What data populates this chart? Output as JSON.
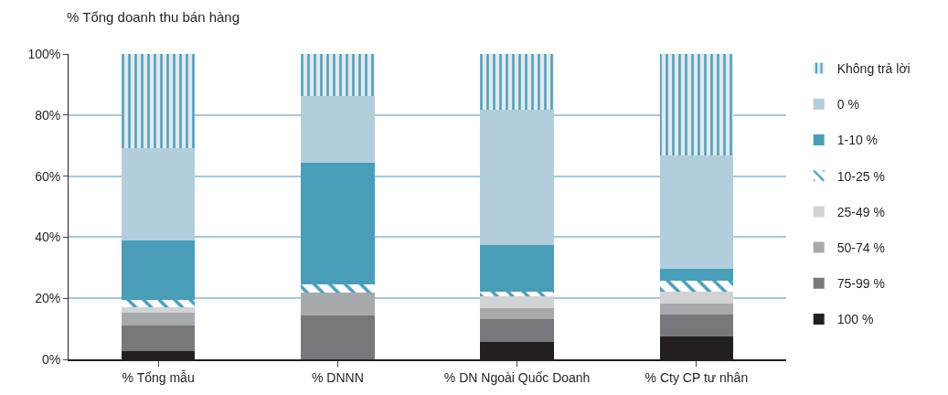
{
  "chart_data": {
    "type": "bar",
    "stacked": true,
    "ylabel": "% Tổng doanh thu bán hàng",
    "categories": [
      "% Tổng mẫu",
      "% DNNN",
      "% DN Ngoài Quốc Doanh",
      "% Cty CP tư nhân"
    ],
    "series": [
      {
        "name": "100 %",
        "color": "#231f20",
        "values": [
          2.7,
          0,
          5.7,
          7.6
        ]
      },
      {
        "name": "75-99 %",
        "color": "#77787b",
        "values": [
          8.4,
          14.4,
          7.5,
          7.1
        ]
      },
      {
        "name": "50-74 %",
        "color": "#a7a9ac",
        "values": [
          4.2,
          7.5,
          3.6,
          3.6
        ]
      },
      {
        "name": "25-49 %",
        "color": "#d1d3d4",
        "values": [
          1.9,
          0,
          3.9,
          3.9
        ]
      },
      {
        "name": "10-25 %",
        "color": "#4a9db8",
        "values": [
          2.3,
          2.7,
          1.5,
          3.6
        ]
      },
      {
        "name": "1-10 %",
        "color": "#4a9db8",
        "values": [
          19.5,
          39.8,
          15.2,
          3.8
        ]
      },
      {
        "name": "0 %",
        "color": "#b2cedc",
        "values": [
          30.3,
          21.7,
          44.2,
          37.3
        ]
      },
      {
        "name": "Không trả lời",
        "color": "#4a9db8",
        "values": [
          30.7,
          13.9,
          18.4,
          33.1
        ]
      }
    ],
    "ylim": [
      0,
      100
    ],
    "yticks": [
      {
        "value": 0,
        "label": "0%"
      },
      {
        "value": 20,
        "label": "20%"
      },
      {
        "value": 40,
        "label": "40%"
      },
      {
        "value": 60,
        "label": "60%"
      },
      {
        "value": 80,
        "label": "80%"
      },
      {
        "value": 100,
        "label": "100%"
      }
    ],
    "grid": "y",
    "legend": "right"
  }
}
